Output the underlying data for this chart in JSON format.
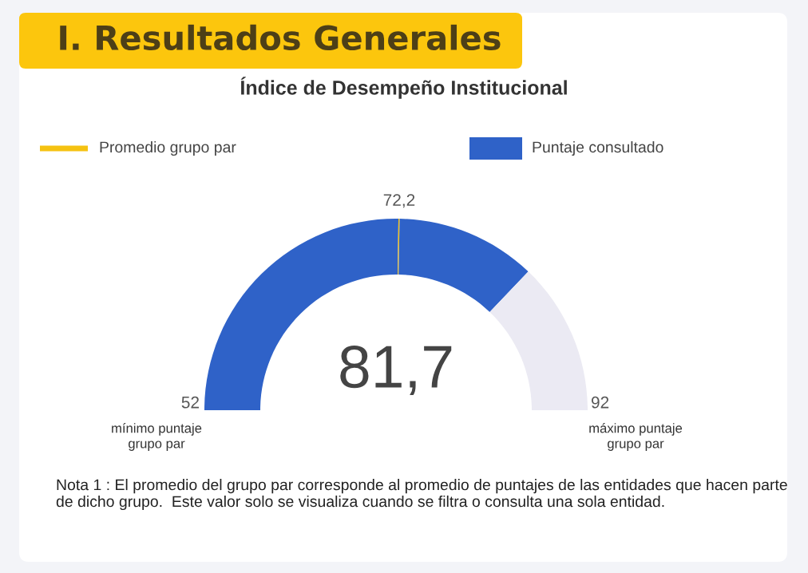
{
  "chart_data": {
    "type": "donut",
    "title": "I. Resultados Generales",
    "subtitle": "Índice de Desempeño Institucional",
    "categories": [
      null,
      "Promedio grupo par",
      "Puntaje consultado",
      null
    ],
    "values": [
      50.4,
      0.2,
      23.65,
      25.75
    ],
    "colors": [
      "#2f62c8",
      "#f5c211",
      "#2f62c8",
      "#ebeaf3"
    ],
    "legend": "top",
    "annotations": [
      "81,7",
      "52",
      "92",
      "72,2",
      "mínimo puntaje\ngrupo par",
      "máximo puntaje\ngrupo par",
      "Nota 1 : El promedio del grupo par corresponde al promedio de puntajes de las entidades que hacen parte de dicho grupo.  Este valor solo se visualiza cuando se filtra o consulta una sola entidad."
    ]
  }
}
